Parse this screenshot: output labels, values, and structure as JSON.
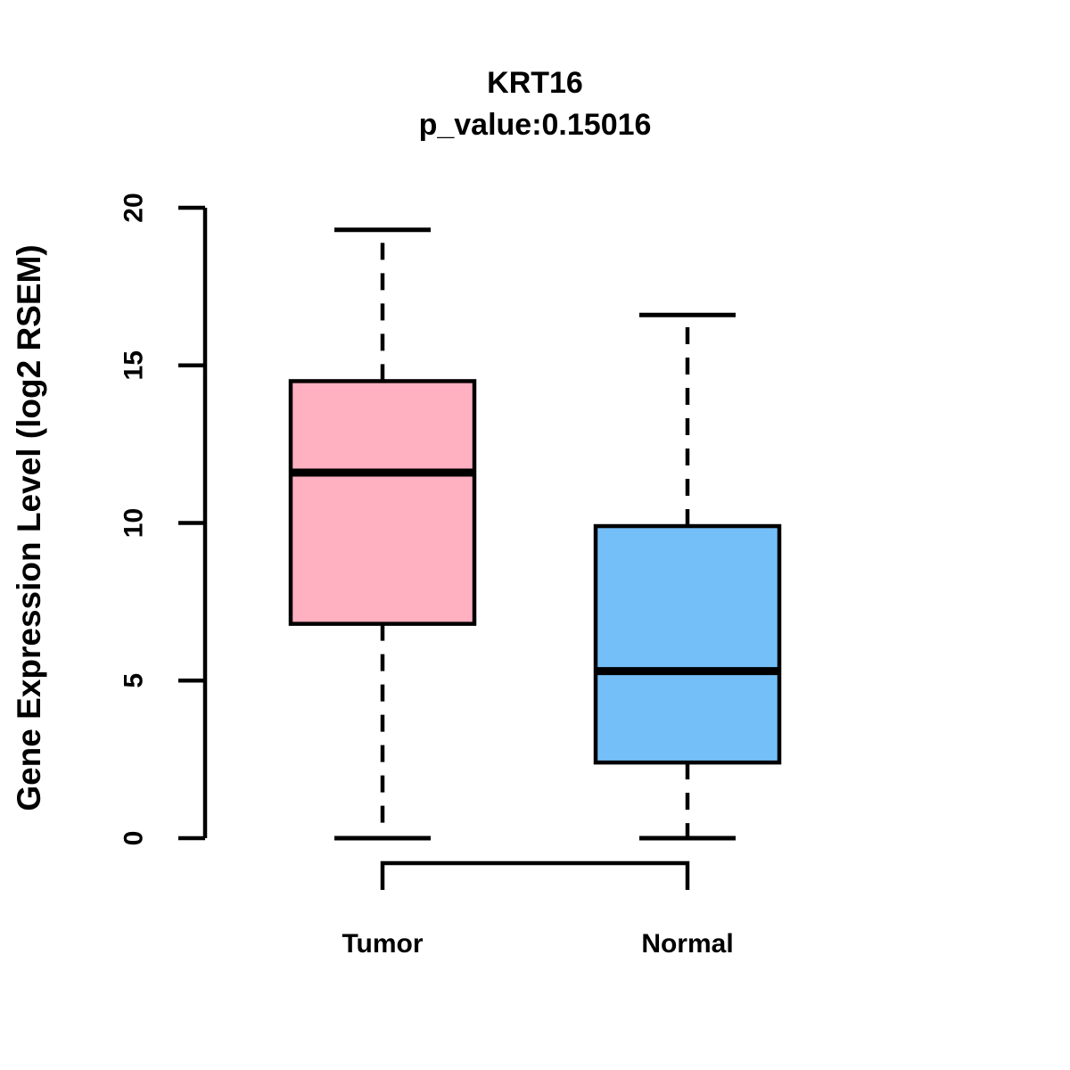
{
  "figure": {
    "background_color": "#FFFFFF"
  },
  "chart_data": {
    "type": "boxplot",
    "title": "KRT16",
    "subtitle": "p_value:0.15016",
    "gene": "KRT16",
    "p_value": "0.15016",
    "ylabel": "Gene Expression Level (log2 RSEM)",
    "ylim": [
      0,
      20
    ],
    "yticks": [
      0,
      5,
      10,
      15,
      20
    ],
    "categories": [
      "Tumor",
      "Normal"
    ],
    "series": [
      {
        "name": "Tumor",
        "whisker_low": 0.0,
        "q1": 6.8,
        "median": 11.6,
        "q3": 14.5,
        "whisker_high": 19.3,
        "fill": "#FFB0C1"
      },
      {
        "name": "Normal",
        "whisker_low": 0.0,
        "q1": 2.4,
        "median": 5.3,
        "q3": 9.9,
        "whisker_high": 16.6,
        "fill": "#75BFF8"
      }
    ],
    "box_border_color": "#000000",
    "median_color": "#000000",
    "whisker_style": "dashed",
    "grid": false,
    "legend": false
  }
}
